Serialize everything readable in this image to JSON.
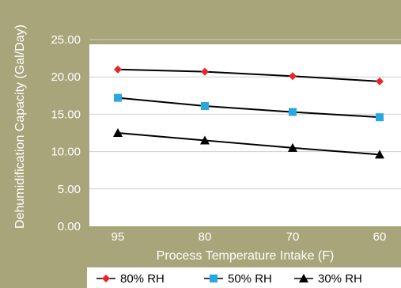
{
  "chart_data": {
    "type": "line",
    "title": "",
    "xlabel": "Process Temperature Intake (F)",
    "ylabel": "Dehumidification Capacity (Gal/Day)",
    "categories": [
      "95",
      "80",
      "70",
      "60"
    ],
    "ylim": [
      0,
      25
    ],
    "yticks": [
      "0.00",
      "5.00",
      "10.00",
      "15.00",
      "20.00",
      "25.00"
    ],
    "grid": true,
    "legend": "bottom",
    "series": [
      {
        "name": "80% RH",
        "values": [
          21.0,
          20.7,
          20.1,
          19.4
        ],
        "color": "#e8242a",
        "marker": "diamond"
      },
      {
        "name": "50% RH",
        "values": [
          17.2,
          16.1,
          15.3,
          14.6
        ],
        "color": "#29a8e0",
        "marker": "square"
      },
      {
        "name": "30% RH",
        "values": [
          12.5,
          11.5,
          10.5,
          9.6
        ],
        "color": "#000000",
        "marker": "triangle"
      }
    ],
    "plot_background": "#ffffff",
    "page_background": "#a8a57a"
  }
}
